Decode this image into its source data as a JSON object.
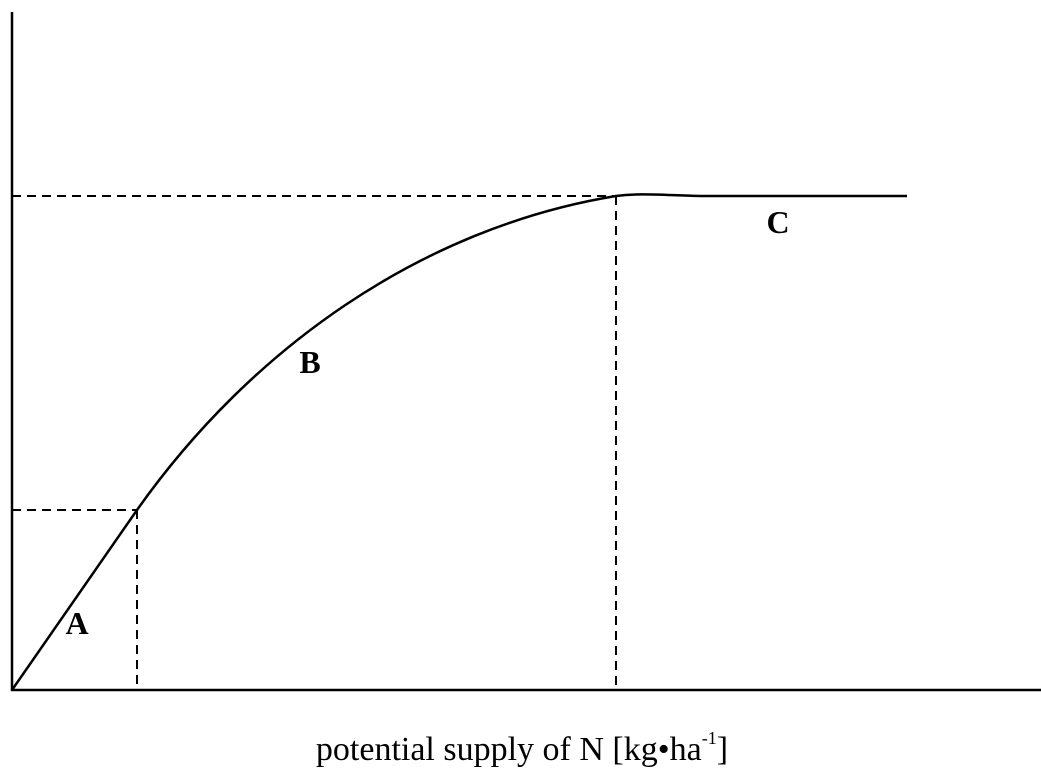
{
  "segments": [
    "A",
    "B",
    "C"
  ],
  "x_axis_label": {
    "text": "potential supply of N  [kg•ha",
    "superscript": "-1",
    "close": "]"
  }
}
